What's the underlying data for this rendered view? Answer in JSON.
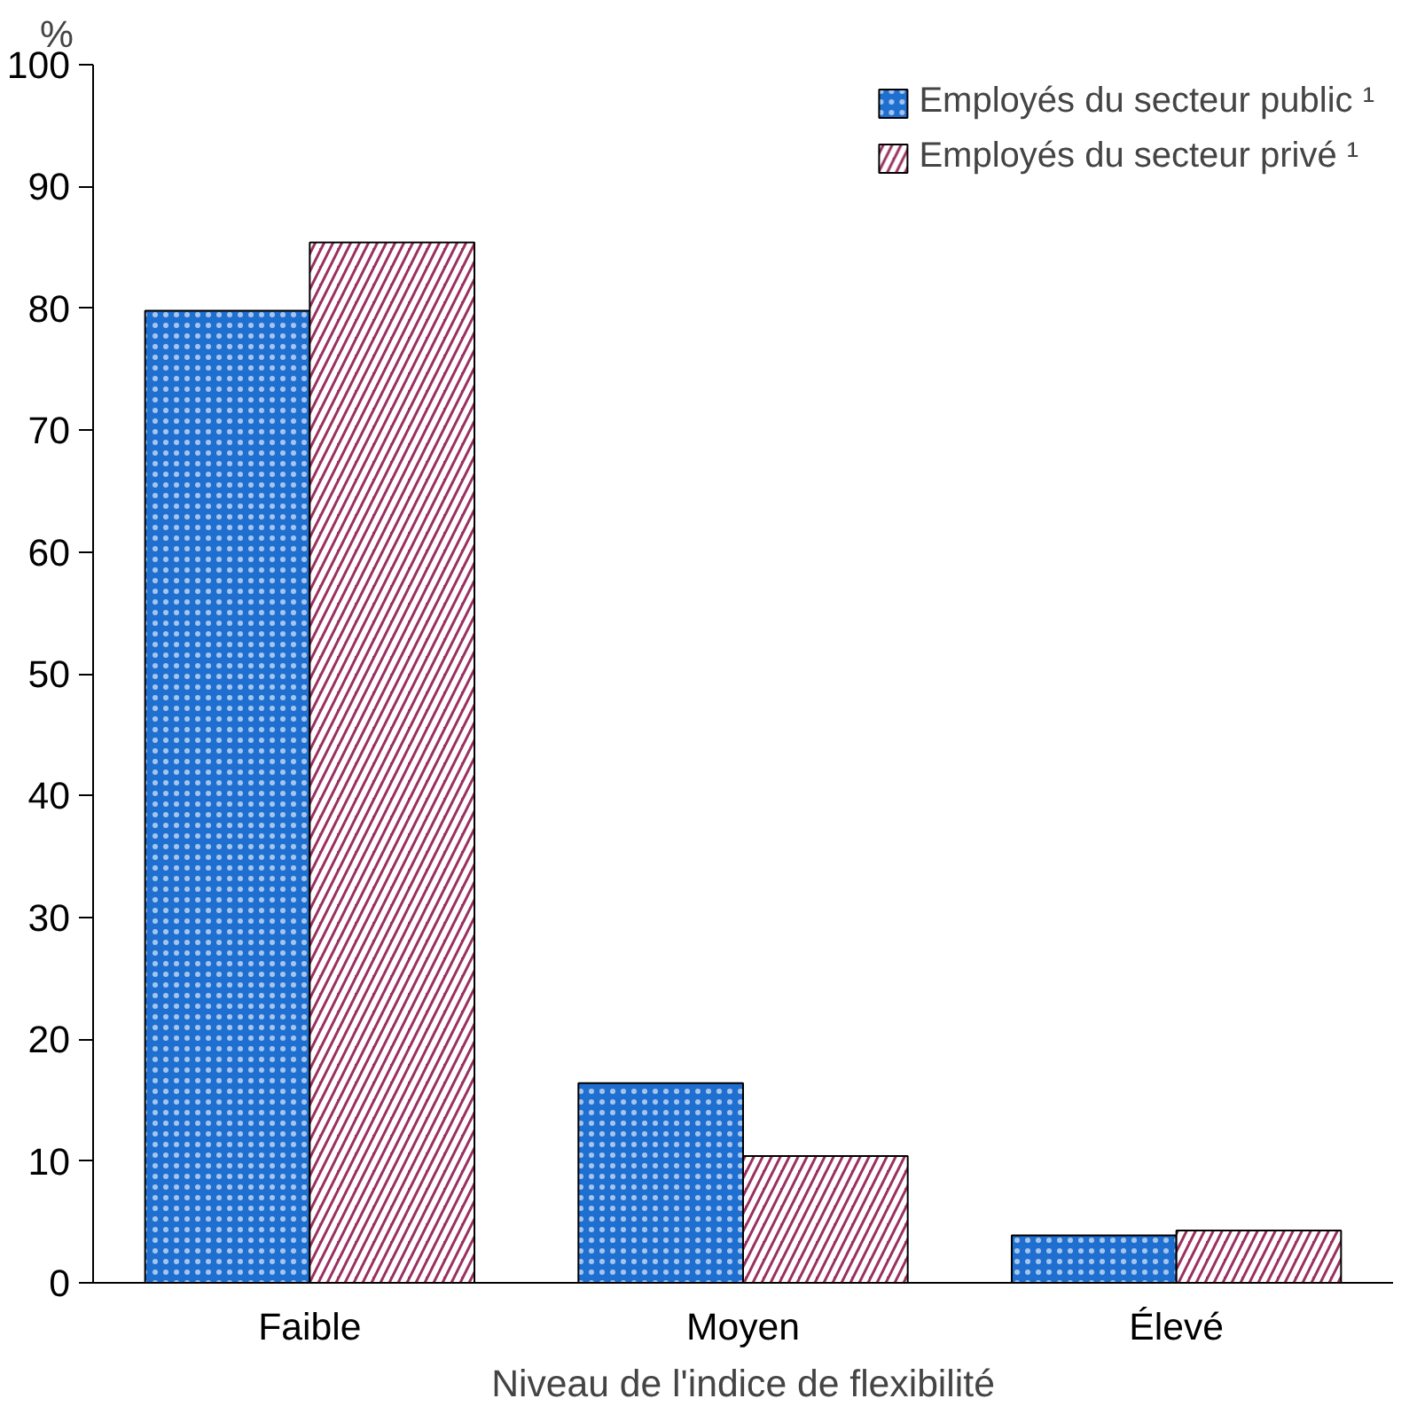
{
  "chart_data": {
    "type": "bar",
    "ylabel": "%",
    "xlabel": "Niveau de l'indice de flexibilité",
    "categories": [
      "Faible",
      "Moyen",
      "Élevé"
    ],
    "series": [
      {
        "name": "Employés du secteur public ¹",
        "color": "#1f6fd0",
        "values": [
          79.8,
          16.4,
          3.9
        ]
      },
      {
        "name": "Employés du secteur privé ¹",
        "color": "#9b3060",
        "values": [
          85.4,
          10.4,
          4.3
        ]
      }
    ],
    "ylim": [
      0,
      100
    ],
    "yticks": [
      0,
      10,
      20,
      30,
      40,
      50,
      60,
      70,
      80,
      90,
      100
    ],
    "grid": false,
    "legend": "top right"
  }
}
